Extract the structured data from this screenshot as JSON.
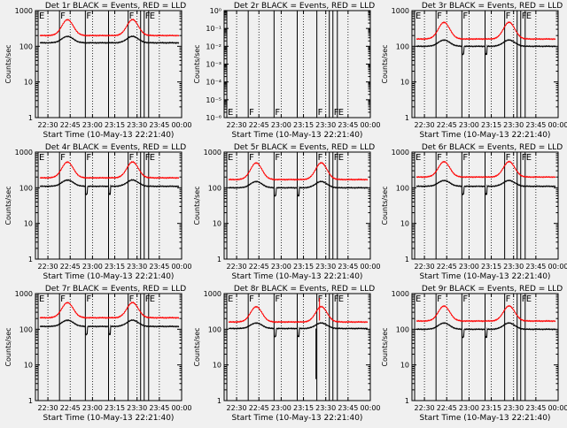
{
  "page": {
    "background": "#f0f0f0"
  },
  "colors": {
    "events": "#000000",
    "lld": "#ff0000"
  },
  "chart_data": [
    {
      "type": "line",
      "title": "Det 1r BLACK = Events, RED = LLD",
      "xlabel": "Start Time (10-May-13 22:21:40)",
      "ylabel": "Counts/sec",
      "yscale": "log",
      "ylim": [
        1,
        1000
      ],
      "y_ticks": [
        {
          "v": 1,
          "label": "1"
        },
        {
          "v": 10,
          "label": "10"
        },
        {
          "v": 100,
          "label": "100"
        },
        {
          "v": 1000,
          "label": "1000"
        }
      ],
      "series": [
        {
          "name": "Events",
          "color": "#000000",
          "base": 125,
          "peak": 190,
          "deep": false
        },
        {
          "name": "LLD",
          "color": "#ff0000",
          "base": 200,
          "peak": 560
        }
      ],
      "spikes": []
    },
    {
      "type": "line",
      "title": "Det 2r BLACK = Events, RED = LLD",
      "xlabel": "Start Time (10-May-13 22:21:40)",
      "ylabel": "Counts/sec",
      "yscale": "log",
      "ylim": [
        1e-06,
        1
      ],
      "y_ticks": [
        {
          "v": 1,
          "label": "10⁰"
        },
        {
          "v": 0.1,
          "label": "10⁻¹"
        },
        {
          "v": 0.01,
          "label": "10⁻²"
        },
        {
          "v": 0.001,
          "label": "10⁻³"
        },
        {
          "v": 0.0001,
          "label": "10⁻⁴"
        },
        {
          "v": 1e-05,
          "label": "10⁻⁵"
        },
        {
          "v": 1e-06,
          "label": "10⁻⁶"
        }
      ],
      "series": [],
      "spikes": []
    },
    {
      "type": "line",
      "title": "Det 3r BLACK = Events, RED = LLD",
      "xlabel": "Start Time (10-May-13 22:21:40)",
      "ylabel": "Counts/sec",
      "yscale": "log",
      "ylim": [
        1,
        1000
      ],
      "y_ticks": [
        {
          "v": 1,
          "label": "1"
        },
        {
          "v": 10,
          "label": "10"
        },
        {
          "v": 100,
          "label": "100"
        },
        {
          "v": 1000,
          "label": "1000"
        }
      ],
      "series": [
        {
          "name": "Events",
          "color": "#000000",
          "base": 100,
          "peak": 150,
          "deep": true
        },
        {
          "name": "LLD",
          "color": "#ff0000",
          "base": 160,
          "peak": 470
        }
      ],
      "spikes": []
    },
    {
      "type": "line",
      "title": "Det 4r BLACK = Events, RED = LLD",
      "xlabel": "Start Time (10-May-13 22:21:40)",
      "ylabel": "Counts/sec",
      "yscale": "log",
      "ylim": [
        1,
        1000
      ],
      "y_ticks": [
        {
          "v": 1,
          "label": "1"
        },
        {
          "v": 10,
          "label": "10"
        },
        {
          "v": 100,
          "label": "100"
        },
        {
          "v": 1000,
          "label": "1000"
        }
      ],
      "series": [
        {
          "name": "Events",
          "color": "#000000",
          "base": 110,
          "peak": 165,
          "deep": true
        },
        {
          "name": "LLD",
          "color": "#ff0000",
          "base": 190,
          "peak": 530
        }
      ],
      "spikes": []
    },
    {
      "type": "line",
      "title": "Det 5r BLACK = Events, RED = LLD",
      "xlabel": "Start Time (10-May-13 22:21:40)",
      "ylabel": "Counts/sec",
      "yscale": "log",
      "ylim": [
        1,
        1000
      ],
      "y_ticks": [
        {
          "v": 1,
          "label": "1"
        },
        {
          "v": 10,
          "label": "10"
        },
        {
          "v": 100,
          "label": "100"
        },
        {
          "v": 1000,
          "label": "1000"
        }
      ],
      "series": [
        {
          "name": "Events",
          "color": "#000000",
          "base": 100,
          "peak": 150,
          "deep": true
        },
        {
          "name": "LLD",
          "color": "#ff0000",
          "base": 170,
          "peak": 500
        }
      ],
      "spikes": []
    },
    {
      "type": "line",
      "title": "Det 6r BLACK = Events, RED = LLD",
      "xlabel": "Start Time (10-May-13 22:21:40)",
      "ylabel": "Counts/sec",
      "yscale": "log",
      "ylim": [
        1,
        1000
      ],
      "y_ticks": [
        {
          "v": 1,
          "label": "1"
        },
        {
          "v": 10,
          "label": "10"
        },
        {
          "v": 100,
          "label": "100"
        },
        {
          "v": 1000,
          "label": "1000"
        }
      ],
      "series": [
        {
          "name": "Events",
          "color": "#000000",
          "base": 110,
          "peak": 160,
          "deep": true
        },
        {
          "name": "LLD",
          "color": "#ff0000",
          "base": 200,
          "peak": 540
        }
      ],
      "spikes": []
    },
    {
      "type": "line",
      "title": "Det 7r BLACK = Events, RED = LLD",
      "xlabel": "Start Time (10-May-13 22:21:40)",
      "ylabel": "Counts/sec",
      "yscale": "log",
      "ylim": [
        1,
        1000
      ],
      "y_ticks": [
        {
          "v": 1,
          "label": "1"
        },
        {
          "v": 10,
          "label": "10"
        },
        {
          "v": 100,
          "label": "100"
        },
        {
          "v": 1000,
          "label": "1000"
        }
      ],
      "series": [
        {
          "name": "Events",
          "color": "#000000",
          "base": 120,
          "peak": 180,
          "deep": true
        },
        {
          "name": "LLD",
          "color": "#ff0000",
          "base": 210,
          "peak": 560
        }
      ],
      "spikes": []
    },
    {
      "type": "line",
      "title": "Det 8r BLACK = Events, RED = LLD",
      "xlabel": "Start Time (10-May-13 22:21:40)",
      "ylabel": "Counts/sec",
      "yscale": "log",
      "ylim": [
        1,
        1000
      ],
      "y_ticks": [
        {
          "v": 1,
          "label": "1"
        },
        {
          "v": 10,
          "label": "10"
        },
        {
          "v": 100,
          "label": "100"
        },
        {
          "v": 1000,
          "label": "1000"
        }
      ],
      "series": [
        {
          "name": "Events",
          "color": "#000000",
          "base": 105,
          "peak": 150,
          "deep": true
        },
        {
          "name": "LLD",
          "color": "#ff0000",
          "base": 160,
          "peak": 430
        }
      ],
      "spikes": [
        {
          "t": 23.43,
          "lld": 750,
          "events": 4
        }
      ]
    },
    {
      "type": "line",
      "title": "Det 9r BLACK = Events, RED = LLD",
      "xlabel": "Start Time (10-May-13 22:21:40)",
      "ylabel": "Counts/sec",
      "yscale": "log",
      "ylim": [
        1,
        1000
      ],
      "y_ticks": [
        {
          "v": 1,
          "label": "1"
        },
        {
          "v": 10,
          "label": "10"
        },
        {
          "v": 100,
          "label": "100"
        },
        {
          "v": 1000,
          "label": "1000"
        }
      ],
      "series": [
        {
          "name": "Events",
          "color": "#000000",
          "base": 100,
          "peak": 150,
          "deep": true
        },
        {
          "name": "LLD",
          "color": "#ff0000",
          "base": 170,
          "peak": 450
        }
      ],
      "spikes": []
    }
  ],
  "shared": {
    "xlim": [
      22.36,
      24.0
    ],
    "x_ticks": [
      {
        "v": 22.5,
        "label": "22:30"
      },
      {
        "v": 22.75,
        "label": "22:45"
      },
      {
        "v": 23.0,
        "label": "23:00"
      },
      {
        "v": 23.25,
        "label": "23:15"
      },
      {
        "v": 23.5,
        "label": "23:30"
      },
      {
        "v": 23.75,
        "label": "23:45"
      },
      {
        "v": 24.0,
        "label": "00:00"
      }
    ],
    "day_night": [
      {
        "t": 22.39,
        "label": "E"
      },
      {
        "t": 22.63,
        "label": "F"
      },
      {
        "t": 22.92,
        "label": "F"
      },
      {
        "t": 23.18,
        "label": ""
      },
      {
        "t": 23.4,
        "label": "F"
      },
      {
        "t": 23.54,
        "label": ""
      },
      {
        "t": 23.58,
        "label": "F"
      },
      {
        "t": 23.63,
        "label": "E"
      }
    ],
    "dotted_times": [
      22.5,
      22.75,
      23.0,
      23.25,
      23.5,
      23.75
    ]
  }
}
